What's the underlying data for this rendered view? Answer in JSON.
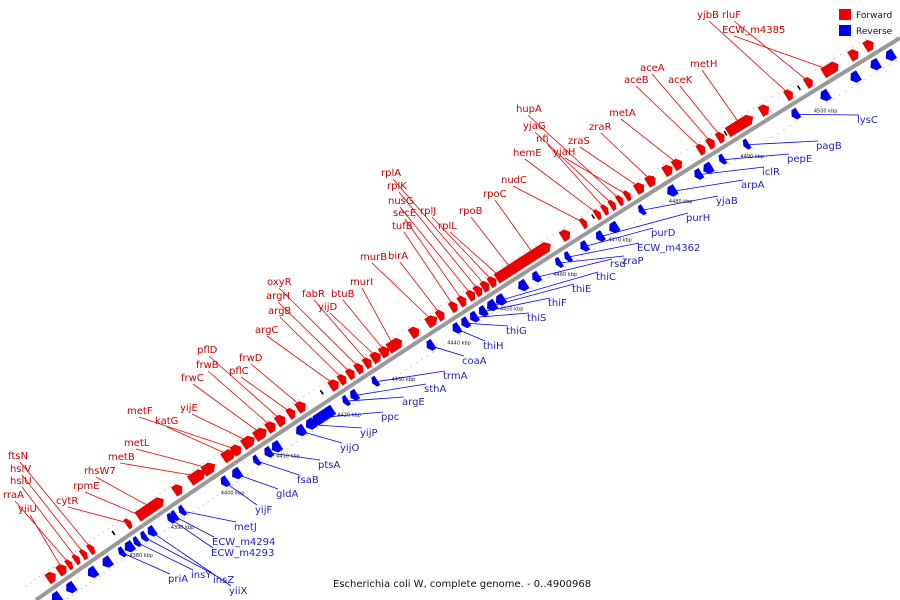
{
  "caption": "Escherichia coli W, complete genome. - 0..4900968",
  "legend": [
    {
      "label": "Forward",
      "color": "#ee0000"
    },
    {
      "label": "Reverse",
      "color": "#0000ee"
    }
  ],
  "colors": {
    "forward": "#ee0000",
    "reverse": "#0000ee",
    "axis": "#888888",
    "forward_label": "#cc0000",
    "reverse_label": "#1f1fbf"
  },
  "ticks": [
    "4380 kbp",
    "4390 kbp",
    "4400 kbp",
    "4410 kbp",
    "4420 kbp",
    "4430 kbp",
    "4440 kbp",
    "4450 kbp",
    "4460 kbp",
    "4470 kbp",
    "4480 kbp",
    "4490 kbp",
    "4500 kbp"
  ],
  "forward_genes": [
    "yiiU",
    "rraA",
    "hslU",
    "hslV",
    "ftsN",
    "cytR",
    "rpmE",
    "rhsW7",
    "metB",
    "metL",
    "katG",
    "metF",
    "yijE",
    "frwC",
    "frwB",
    "pflD",
    "pflC",
    "frwD",
    "argC",
    "argB",
    "argH",
    "oxyR",
    "fabR",
    "yijD",
    "btuB",
    "murI",
    "murB",
    "birA",
    "tufB",
    "secE",
    "nusG",
    "rplK",
    "rplA",
    "rplJ",
    "rplL",
    "rpoB",
    "rpoC",
    "nudC",
    "hemE",
    "nfi",
    "yjaG",
    "hupA",
    "yjaH",
    "zraS",
    "zraR",
    "metA",
    "aceB",
    "aceA",
    "aceK",
    "metH",
    "yjbB",
    "rluF",
    "ECW_m4385"
  ],
  "reverse_genes": [
    "priA",
    "insY",
    "insZ",
    "yiiX",
    "ECW_m4293",
    "ECW_m4294",
    "metJ",
    "yijF",
    "gldA",
    "fsaB",
    "ptsA",
    "yijO",
    "yijP",
    "ppc",
    "argE",
    "sthA",
    "trmA",
    "coaA",
    "thiH",
    "thiG",
    "thiS",
    "thiF",
    "thiE",
    "thiC",
    "rsd",
    "zraP",
    "ECW_m4362",
    "purD",
    "purH",
    "yjaB",
    "arpA",
    "iclR",
    "pepE",
    "pagB",
    "lysC"
  ]
}
